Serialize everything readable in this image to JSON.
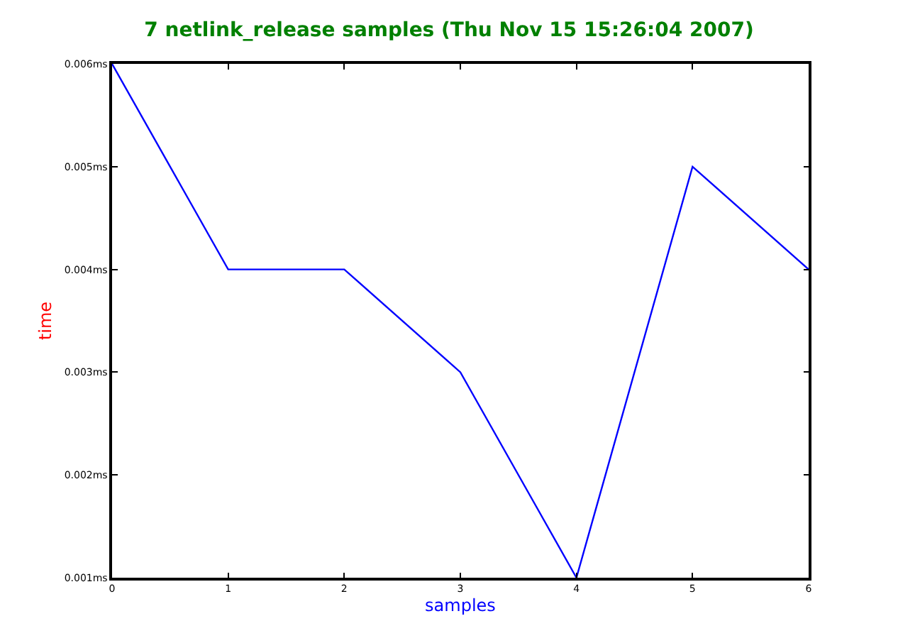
{
  "chart_data": {
    "type": "line",
    "title": "7 netlink_release samples (Thu Nov 15 15:26:04 2007)",
    "xlabel": "samples",
    "ylabel": "time",
    "x": [
      0,
      1,
      2,
      3,
      4,
      5,
      6
    ],
    "series": [
      {
        "color": "#0000ff",
        "values": [
          0.006,
          0.004,
          0.004,
          0.003,
          0.001,
          0.005,
          0.004
        ]
      }
    ],
    "xlim": [
      0,
      6
    ],
    "xticks": [
      0,
      1,
      2,
      3,
      4,
      5,
      6
    ],
    "ylim": [
      0.001,
      0.006
    ],
    "yticks": [
      {
        "value": 0.001,
        "label": "0.001ms"
      },
      {
        "value": 0.002,
        "label": "0.002ms"
      },
      {
        "value": 0.003,
        "label": "0.003ms"
      },
      {
        "value": 0.004,
        "label": "0.004ms"
      },
      {
        "value": 0.005,
        "label": "0.005ms"
      },
      {
        "value": 0.006,
        "label": "0.006ms"
      }
    ],
    "marker": "none",
    "line_style": "solid"
  }
}
